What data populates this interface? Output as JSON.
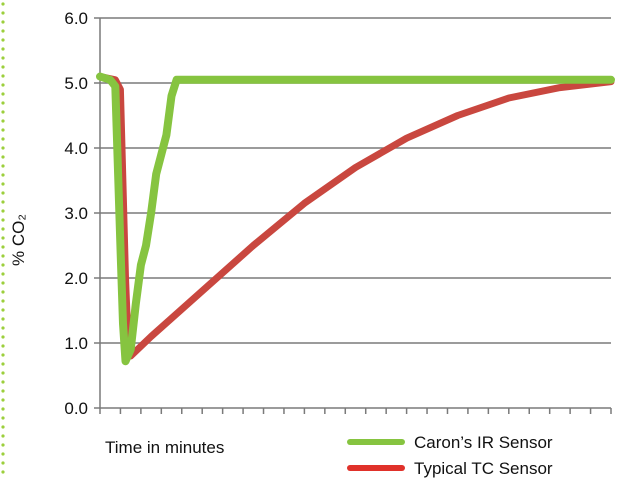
{
  "chart_data": {
    "type": "line",
    "title": "",
    "xlabel": "Time in minutes",
    "ylabel": "% CO₂",
    "ylim": [
      0,
      6
    ],
    "yticks": [
      "0.0",
      "1.0",
      "2.0",
      "3.0",
      "4.0",
      "5.0",
      "6.0"
    ],
    "xlim": [
      0,
      100
    ],
    "grid": true,
    "legend_position": "bottom-right",
    "series": [
      {
        "name": "Caron’s IR Sensor",
        "color": "#86c440",
        "x": [
          0,
          2,
          3,
          4,
          4.5,
          5,
          6,
          7,
          8,
          9,
          10,
          11,
          12,
          13,
          14,
          15,
          100
        ],
        "y": [
          5.1,
          5.05,
          4.95,
          2.5,
          1.3,
          0.72,
          0.9,
          1.6,
          2.2,
          2.5,
          3.0,
          3.6,
          3.9,
          4.2,
          4.8,
          5.05,
          5.05
        ]
      },
      {
        "name": "Typical TC Sensor",
        "color": "#c9473f",
        "x": [
          0,
          3,
          4,
          5,
          5.5,
          6,
          10,
          20,
          30,
          40,
          50,
          60,
          70,
          80,
          90,
          100
        ],
        "y": [
          5.1,
          5.05,
          4.9,
          2.0,
          1.0,
          0.8,
          1.1,
          1.8,
          2.5,
          3.15,
          3.7,
          4.15,
          4.5,
          4.77,
          4.93,
          5.02
        ]
      }
    ]
  }
}
